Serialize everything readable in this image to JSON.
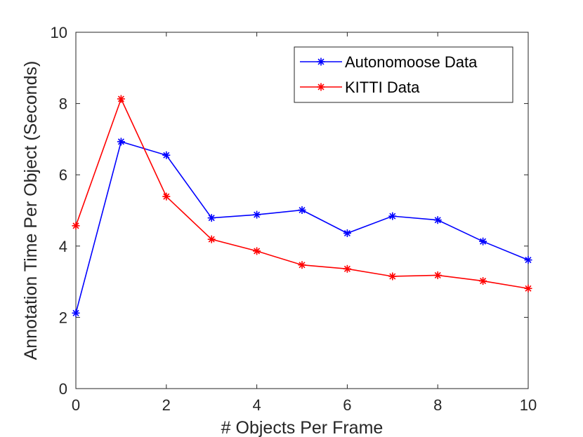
{
  "chart_data": {
    "type": "line",
    "xlabel": "# Objects Per Frame",
    "ylabel": "Annotation Time Per Object (Seconds)",
    "xlim": [
      0,
      10
    ],
    "ylim": [
      0,
      10
    ],
    "xticks": [
      0,
      2,
      4,
      6,
      8,
      10
    ],
    "yticks": [
      0,
      2,
      4,
      6,
      8,
      10
    ],
    "grid": false,
    "legend_position": "top-right",
    "x": [
      0,
      1,
      2,
      3,
      4,
      5,
      6,
      7,
      8,
      9,
      10
    ],
    "series": [
      {
        "name": "Autonomoose Data",
        "color": "#0000ff",
        "marker": "asterisk",
        "values": [
          2.12,
          6.93,
          6.55,
          4.79,
          4.88,
          5.01,
          4.36,
          4.84,
          4.73,
          4.13,
          3.61
        ]
      },
      {
        "name": "KITTI Data",
        "color": "#ff0000",
        "marker": "asterisk",
        "values": [
          4.57,
          8.13,
          5.39,
          4.19,
          3.86,
          3.47,
          3.36,
          3.15,
          3.18,
          3.02,
          2.81
        ]
      }
    ]
  }
}
